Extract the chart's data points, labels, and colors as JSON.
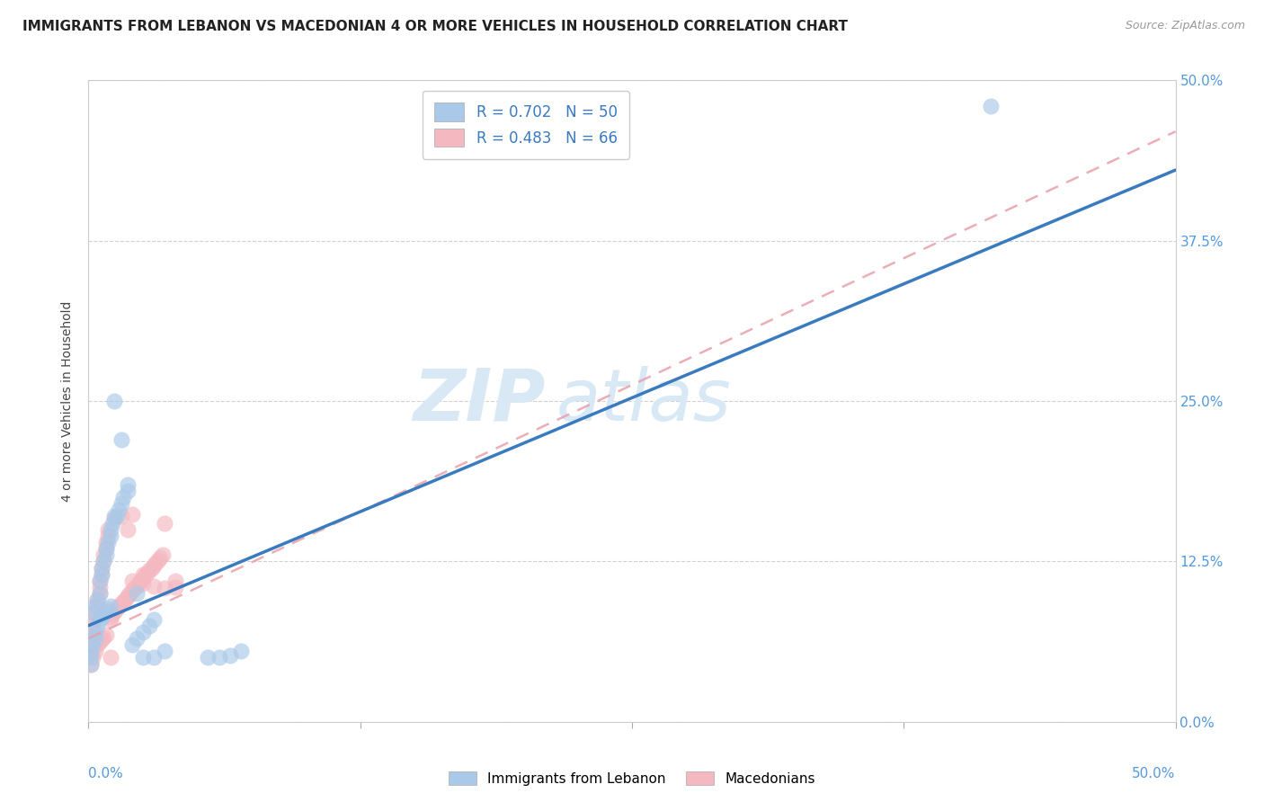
{
  "title": "IMMIGRANTS FROM LEBANON VS MACEDONIAN 4 OR MORE VEHICLES IN HOUSEHOLD CORRELATION CHART",
  "source": "Source: ZipAtlas.com",
  "ylabel": "4 or more Vehicles in Household",
  "xlim": [
    0.0,
    0.5
  ],
  "ylim": [
    0.0,
    0.5
  ],
  "xticks": [
    0.0,
    0.125,
    0.25,
    0.375,
    0.5
  ],
  "yticks": [
    0.0,
    0.125,
    0.25,
    0.375,
    0.5
  ],
  "ytick_labels": [
    "0.0%",
    "12.5%",
    "25.0%",
    "37.5%",
    "50.0%"
  ],
  "xtick_label_left": "0.0%",
  "xtick_label_right": "50.0%",
  "blue_color": "#aac9e8",
  "pink_color": "#f4b8c1",
  "blue_line_color": "#3a7abf",
  "pink_line_color": "#e8a0aa",
  "background_color": "#ffffff",
  "grid_color": "#cccccc",
  "title_fontsize": 11,
  "axis_label_color": "#5599dd",
  "watermark_color": "#d8e8f5",
  "legend_r1": "R = 0.702",
  "legend_n1": "N = 50",
  "legend_r2": "R = 0.483",
  "legend_n2": "N = 66",
  "legend_text_color": "#3a7abf",
  "leb_line_x0": 0.0,
  "leb_line_y0": 0.075,
  "leb_line_x1": 0.5,
  "leb_line_y1": 0.43,
  "mac_line_x0": 0.0,
  "mac_line_y0": 0.065,
  "mac_line_x1": 0.5,
  "mac_line_y1": 0.46,
  "leb_points_x": [
    0.002,
    0.003,
    0.004,
    0.005,
    0.005,
    0.006,
    0.006,
    0.007,
    0.008,
    0.008,
    0.009,
    0.01,
    0.01,
    0.011,
    0.012,
    0.013,
    0.014,
    0.015,
    0.016,
    0.018,
    0.02,
    0.022,
    0.025,
    0.028,
    0.03,
    0.001,
    0.001,
    0.002,
    0.003,
    0.003,
    0.004,
    0.005,
    0.006,
    0.007,
    0.008,
    0.009,
    0.01,
    0.012,
    0.015,
    0.018,
    0.022,
    0.025,
    0.03,
    0.035,
    0.055,
    0.06,
    0.065,
    0.07,
    0.415,
    0.001
  ],
  "leb_points_y": [
    0.085,
    0.09,
    0.095,
    0.1,
    0.11,
    0.115,
    0.12,
    0.125,
    0.13,
    0.135,
    0.14,
    0.145,
    0.15,
    0.155,
    0.16,
    0.16,
    0.165,
    0.17,
    0.175,
    0.18,
    0.06,
    0.065,
    0.07,
    0.075,
    0.08,
    0.05,
    0.055,
    0.06,
    0.065,
    0.07,
    0.075,
    0.08,
    0.082,
    0.084,
    0.086,
    0.088,
    0.09,
    0.25,
    0.22,
    0.185,
    0.1,
    0.05,
    0.05,
    0.055,
    0.05,
    0.05,
    0.052,
    0.055,
    0.48,
    0.045
  ],
  "mac_points_x": [
    0.001,
    0.001,
    0.002,
    0.002,
    0.003,
    0.003,
    0.004,
    0.004,
    0.005,
    0.005,
    0.005,
    0.006,
    0.006,
    0.007,
    0.007,
    0.008,
    0.008,
    0.009,
    0.009,
    0.01,
    0.01,
    0.011,
    0.012,
    0.013,
    0.014,
    0.015,
    0.016,
    0.017,
    0.018,
    0.019,
    0.02,
    0.021,
    0.022,
    0.023,
    0.024,
    0.025,
    0.026,
    0.027,
    0.028,
    0.029,
    0.03,
    0.031,
    0.032,
    0.033,
    0.034,
    0.001,
    0.002,
    0.003,
    0.004,
    0.005,
    0.006,
    0.007,
    0.008,
    0.012,
    0.015,
    0.02,
    0.025,
    0.02,
    0.025,
    0.03,
    0.035,
    0.035,
    0.04,
    0.04,
    0.018,
    0.01
  ],
  "mac_points_y": [
    0.06,
    0.065,
    0.07,
    0.075,
    0.08,
    0.085,
    0.09,
    0.095,
    0.1,
    0.105,
    0.11,
    0.115,
    0.12,
    0.125,
    0.13,
    0.135,
    0.14,
    0.145,
    0.15,
    0.08,
    0.082,
    0.084,
    0.086,
    0.088,
    0.09,
    0.092,
    0.094,
    0.096,
    0.098,
    0.1,
    0.102,
    0.104,
    0.106,
    0.108,
    0.11,
    0.112,
    0.114,
    0.116,
    0.118,
    0.12,
    0.122,
    0.124,
    0.126,
    0.128,
    0.13,
    0.045,
    0.05,
    0.055,
    0.06,
    0.062,
    0.064,
    0.066,
    0.068,
    0.158,
    0.16,
    0.162,
    0.115,
    0.11,
    0.108,
    0.106,
    0.104,
    0.155,
    0.105,
    0.11,
    0.15,
    0.05
  ]
}
